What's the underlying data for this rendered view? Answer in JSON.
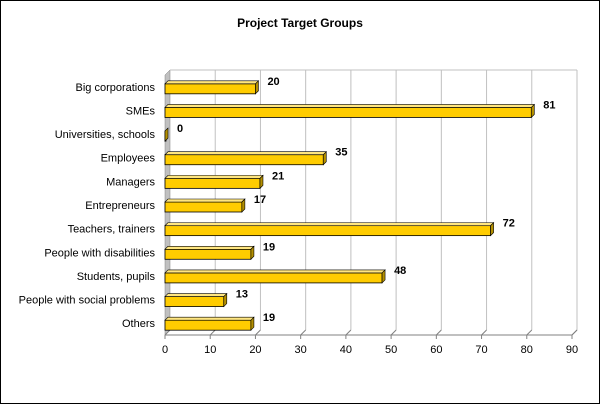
{
  "chart_data": {
    "type": "bar",
    "orientation": "horizontal",
    "title": "Project Target Groups",
    "xlabel": "",
    "ylabel": "",
    "categories": [
      "Big corporations",
      "SMEs",
      "Universities, schools",
      "Employees",
      "Managers",
      "Entrepreneurs",
      "Teachers, trainers",
      "People with disabilities",
      "Students, pupils",
      "People with social problems",
      "Others"
    ],
    "values": [
      20,
      81,
      0,
      35,
      21,
      17,
      72,
      19,
      48,
      13,
      19
    ],
    "xlim": [
      0,
      90
    ],
    "xticks": [
      0,
      10,
      20,
      30,
      40,
      50,
      60,
      70,
      80,
      90
    ],
    "grid": "vertical",
    "legend": "none",
    "data_labels": true,
    "colors": {
      "bar_front": "#ffcc00",
      "bar_top": "#ffe680",
      "bar_side": "#b38f00",
      "grid": "#c0c0c0",
      "wall": "#c0c0c0"
    }
  }
}
